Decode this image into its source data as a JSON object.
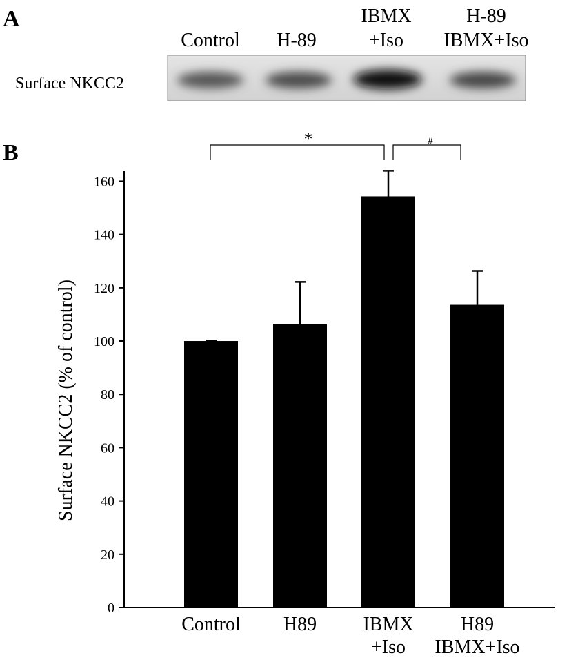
{
  "panels": [
    "A",
    "B"
  ],
  "blot": {
    "label": "Surface NKCC2",
    "lanes": [
      [
        "Control"
      ],
      [
        "H-89"
      ],
      [
        "IBMX",
        "+Iso"
      ],
      [
        "H-89",
        "IBMX+Iso"
      ]
    ]
  },
  "chart_data": {
    "type": "bar",
    "y_label": "Surface NKCC2 (% of control)",
    "categories": [
      [
        "Control"
      ],
      [
        "H89"
      ],
      [
        "IBMX",
        "+Iso"
      ],
      [
        "H89",
        "IBMX+Iso"
      ]
    ],
    "values": [
      100,
      106.4,
      154.3,
      113.6
    ],
    "errors": [
      0,
      15.8,
      9.6,
      12.7
    ],
    "color": "#000000",
    "ylim": [
      0,
      164
    ],
    "yticks": [
      0,
      20,
      40,
      60,
      80,
      100,
      120,
      140,
      160
    ],
    "annotations": [
      "*",
      "#"
    ]
  }
}
